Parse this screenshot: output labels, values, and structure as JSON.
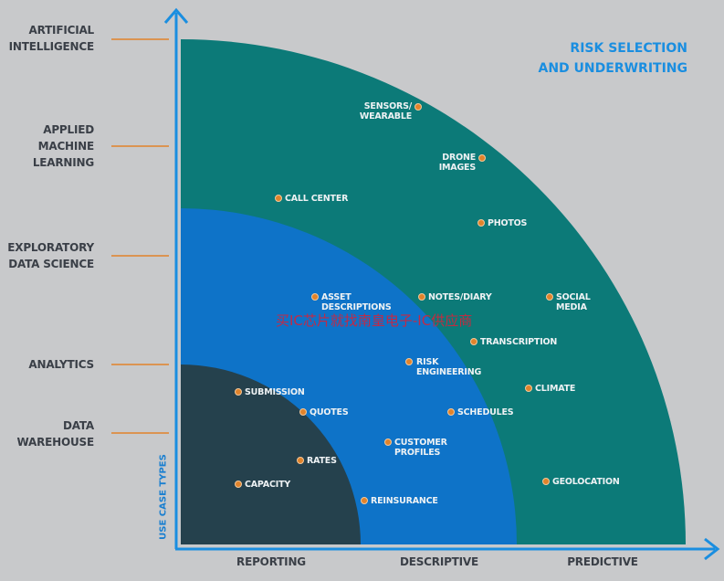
{
  "title": "RISK SELECTION\nAND UNDERWRITING",
  "y_axis_title": "USE CASE TYPES",
  "watermark": "买IC芯片就找南皇电子-IC供应商",
  "y_levels": [
    {
      "label": "ARTIFICIAL\nINTELLIGENCE"
    },
    {
      "label": "APPLIED\nMACHINE\nLEARNING"
    },
    {
      "label": "EXPLORATORY\nDATA SCIENCE"
    },
    {
      "label": "ANALYTICS"
    },
    {
      "label": "DATA\nWAREHOUSE"
    }
  ],
  "x_levels": [
    {
      "label": "REPORTING"
    },
    {
      "label": "DESCRIPTIVE"
    },
    {
      "label": "PREDICTIVE"
    }
  ],
  "regions": [
    {
      "level": "REPORTING",
      "color": "#25414d"
    },
    {
      "level": "DESCRIPTIVE",
      "color": "#0e73c8"
    },
    {
      "level": "PREDICTIVE",
      "color": "#0c7a78"
    }
  ],
  "colors": {
    "axis": "#1a8ee0",
    "tick": "#e1832b",
    "dot": "#e1832b",
    "title": "#1a8ee0"
  },
  "points": [
    {
      "label": "SENSORS/\nWEARABLE"
    },
    {
      "label": "DRONE\nIMAGES"
    },
    {
      "label": "CALL CENTER"
    },
    {
      "label": "PHOTOS"
    },
    {
      "label": "ASSET\nDESCRIPTIONS"
    },
    {
      "label": "NOTES/DIARY"
    },
    {
      "label": "SOCIAL\nMEDIA"
    },
    {
      "label": "TRANSCRIPTION"
    },
    {
      "label": "RISK\nENGINEERING"
    },
    {
      "label": "CLIMATE"
    },
    {
      "label": "SUBMISSION"
    },
    {
      "label": "QUOTES"
    },
    {
      "label": "SCHEDULES"
    },
    {
      "label": "CUSTOMER\nPROFILES"
    },
    {
      "label": "RATES"
    },
    {
      "label": "CAPACITY"
    },
    {
      "label": "GEOLOCATION"
    },
    {
      "label": "REINSURANCE"
    }
  ]
}
